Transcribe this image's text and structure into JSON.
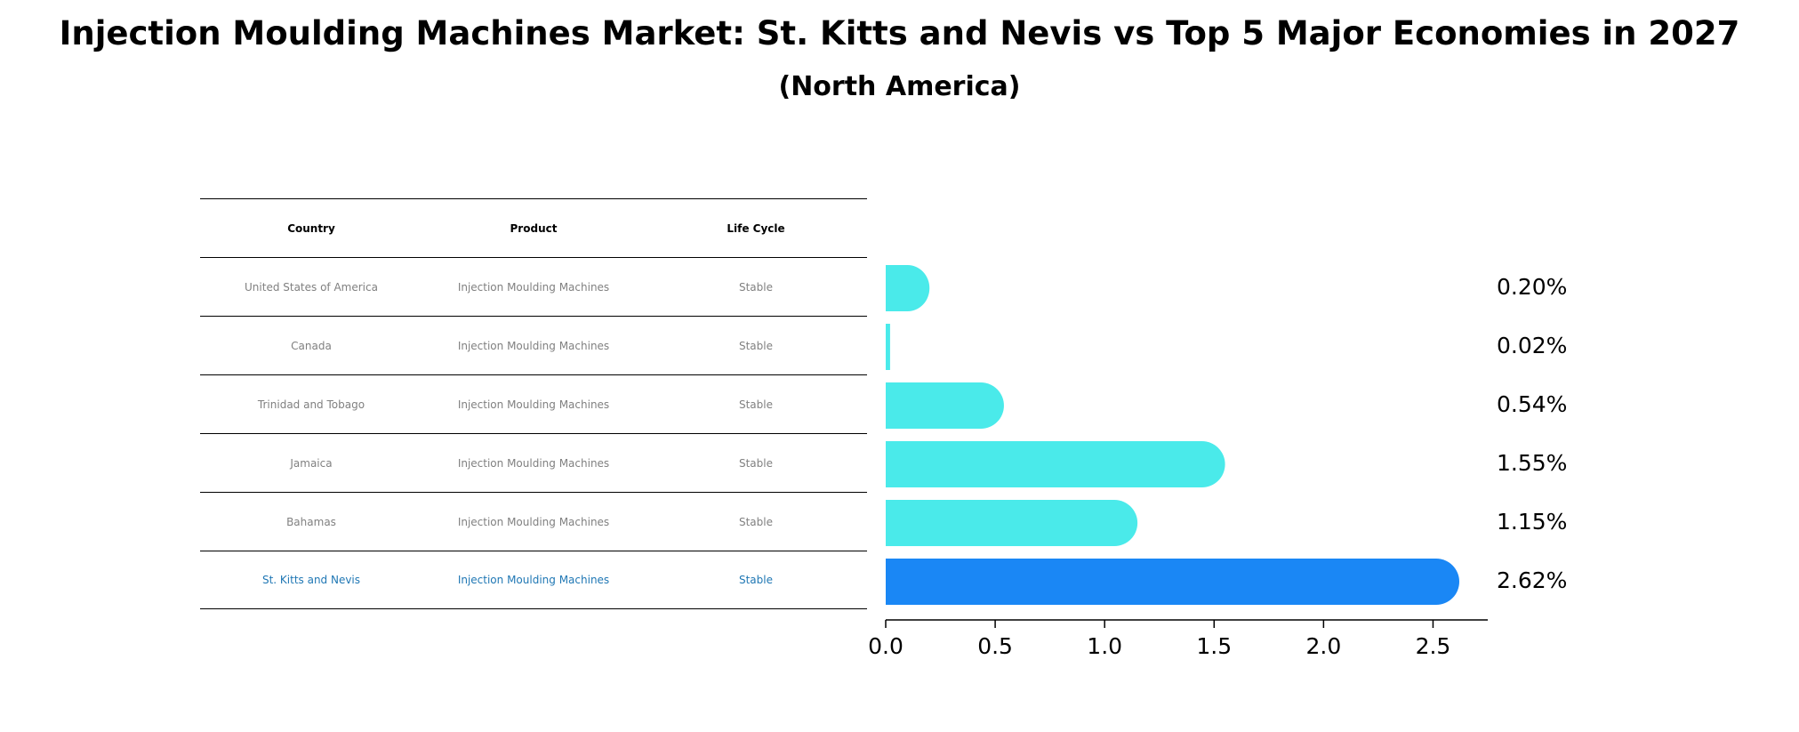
{
  "title": "Injection Moulding Machines Market: St. Kitts and Nevis vs Top 5 Major Economies in 2027",
  "subtitle": "(North America)",
  "table": {
    "headers": [
      "Country",
      "Product",
      "Life Cycle"
    ],
    "rows": [
      {
        "country": "United States of America",
        "product": "Injection Moulding Machines",
        "life_cycle": "Stable"
      },
      {
        "country": "Canada",
        "product": "Injection Moulding Machines",
        "life_cycle": "Stable"
      },
      {
        "country": "Trinidad and Tobago",
        "product": "Injection Moulding Machines",
        "life_cycle": "Stable"
      },
      {
        "country": "Jamaica",
        "product": "Injection Moulding Machines",
        "life_cycle": "Stable"
      },
      {
        "country": "Bahamas",
        "product": "Injection Moulding Machines",
        "life_cycle": "Stable"
      },
      {
        "country": "St. Kitts and Nevis",
        "product": "Injection Moulding Machines",
        "life_cycle": "Stable"
      }
    ]
  },
  "chart_data": {
    "type": "bar",
    "orientation": "horizontal",
    "categories": [
      "United States of America",
      "Canada",
      "Trinidad and Tobago",
      "Jamaica",
      "Bahamas",
      "St. Kitts and Nevis"
    ],
    "values": [
      0.2,
      0.02,
      0.54,
      1.55,
      1.15,
      2.62
    ],
    "value_labels": [
      "0.20%",
      "0.02%",
      "0.54%",
      "1.55%",
      "1.15%",
      "2.62%"
    ],
    "xlim": [
      0,
      2.75
    ],
    "xticks": [
      0.0,
      0.5,
      1.0,
      1.5,
      2.0,
      2.5
    ],
    "xtick_labels": [
      "0.0",
      "0.5",
      "1.0",
      "1.5",
      "2.0",
      "2.5"
    ],
    "grid": false,
    "colors": {
      "default_bar": "#4aeaea",
      "highlight_bar": "#1a87f5",
      "highlight_text": "#1f77b4"
    },
    "highlight_index": 5
  }
}
